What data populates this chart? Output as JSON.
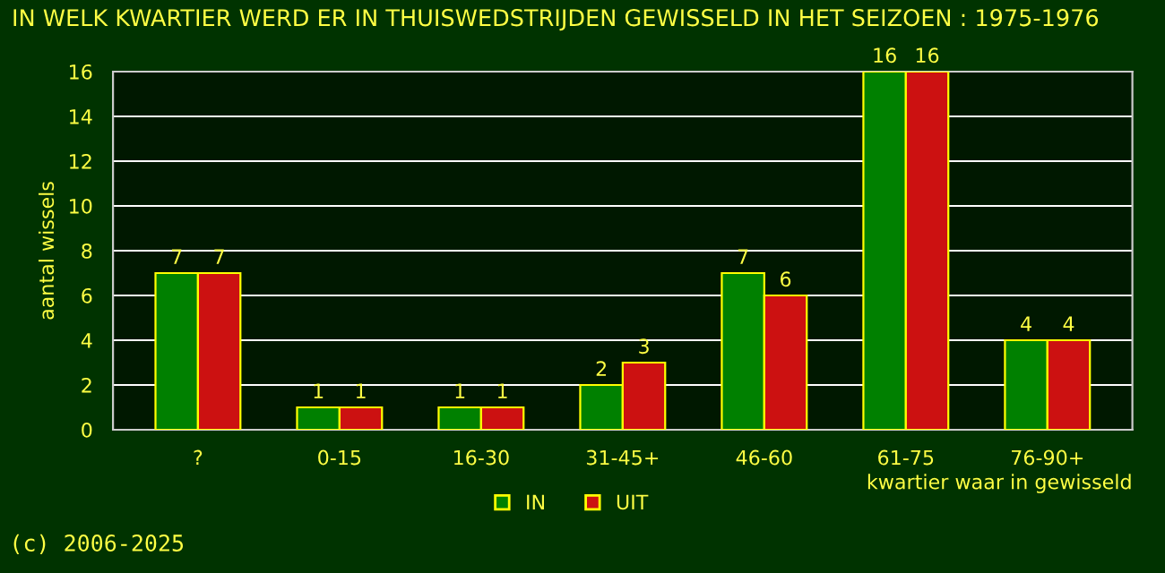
{
  "chart_data": {
    "type": "bar",
    "title": "IN WELK KWARTIER WERD ER IN THUISWEDSTRIJDEN GEWISSELD IN HET SEIZOEN : 1975-1976",
    "xlabel": "kwartier waar in gewisseld",
    "ylabel": "aantal wissels",
    "categories": [
      "?",
      "0-15",
      "16-30",
      "31-45+",
      "46-60",
      "61-75",
      "76-90+"
    ],
    "series": [
      {
        "name": "IN",
        "color": "#008000",
        "values": [
          7,
          1,
          1,
          2,
          7,
          16,
          4
        ]
      },
      {
        "name": "UIT",
        "color": "#cc1111",
        "values": [
          7,
          1,
          1,
          3,
          6,
          16,
          4
        ]
      }
    ],
    "ylim": [
      0,
      16
    ],
    "yticks": [
      0,
      2,
      4,
      6,
      8,
      10,
      12,
      14,
      16
    ],
    "grid": "y",
    "legend": "bottom",
    "data_labels": true,
    "annotations": [
      "(c) 2006-2025"
    ]
  }
}
